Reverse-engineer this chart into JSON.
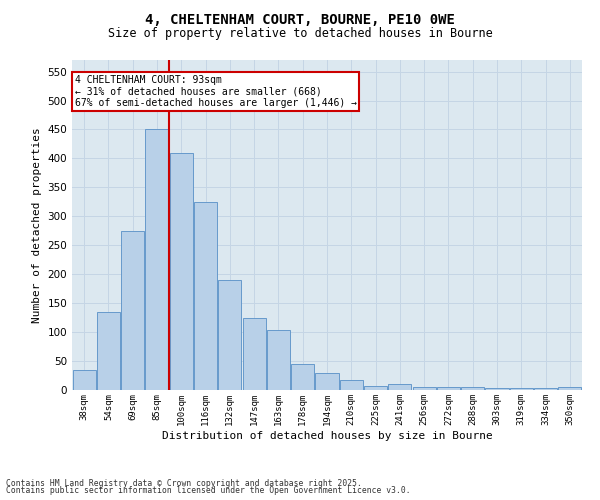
{
  "title_line1": "4, CHELTENHAM COURT, BOURNE, PE10 0WE",
  "title_line2": "Size of property relative to detached houses in Bourne",
  "xlabel": "Distribution of detached houses by size in Bourne",
  "ylabel": "Number of detached properties",
  "categories": [
    "38sqm",
    "54sqm",
    "69sqm",
    "85sqm",
    "100sqm",
    "116sqm",
    "132sqm",
    "147sqm",
    "163sqm",
    "178sqm",
    "194sqm",
    "210sqm",
    "225sqm",
    "241sqm",
    "256sqm",
    "272sqm",
    "288sqm",
    "303sqm",
    "319sqm",
    "334sqm",
    "350sqm"
  ],
  "values": [
    35,
    135,
    275,
    450,
    410,
    325,
    190,
    125,
    103,
    45,
    30,
    18,
    7,
    10,
    5,
    5,
    5,
    3,
    3,
    3,
    6
  ],
  "bar_color": "#b8d0e8",
  "bar_edge_color": "#6699cc",
  "redline_x": 3.5,
  "ylim": [
    0,
    570
  ],
  "yticks": [
    0,
    50,
    100,
    150,
    200,
    250,
    300,
    350,
    400,
    450,
    500,
    550
  ],
  "grid_color": "#c5d5e5",
  "bg_color": "#dce8f0",
  "redline_color": "#cc0000",
  "annotation_text_line1": "4 CHELTENHAM COURT: 93sqm",
  "annotation_text_line2": "← 31% of detached houses are smaller (668)",
  "annotation_text_line3": "67% of semi-detached houses are larger (1,446) →",
  "footer_line1": "Contains HM Land Registry data © Crown copyright and database right 2025.",
  "footer_line2": "Contains public sector information licensed under the Open Government Licence v3.0."
}
